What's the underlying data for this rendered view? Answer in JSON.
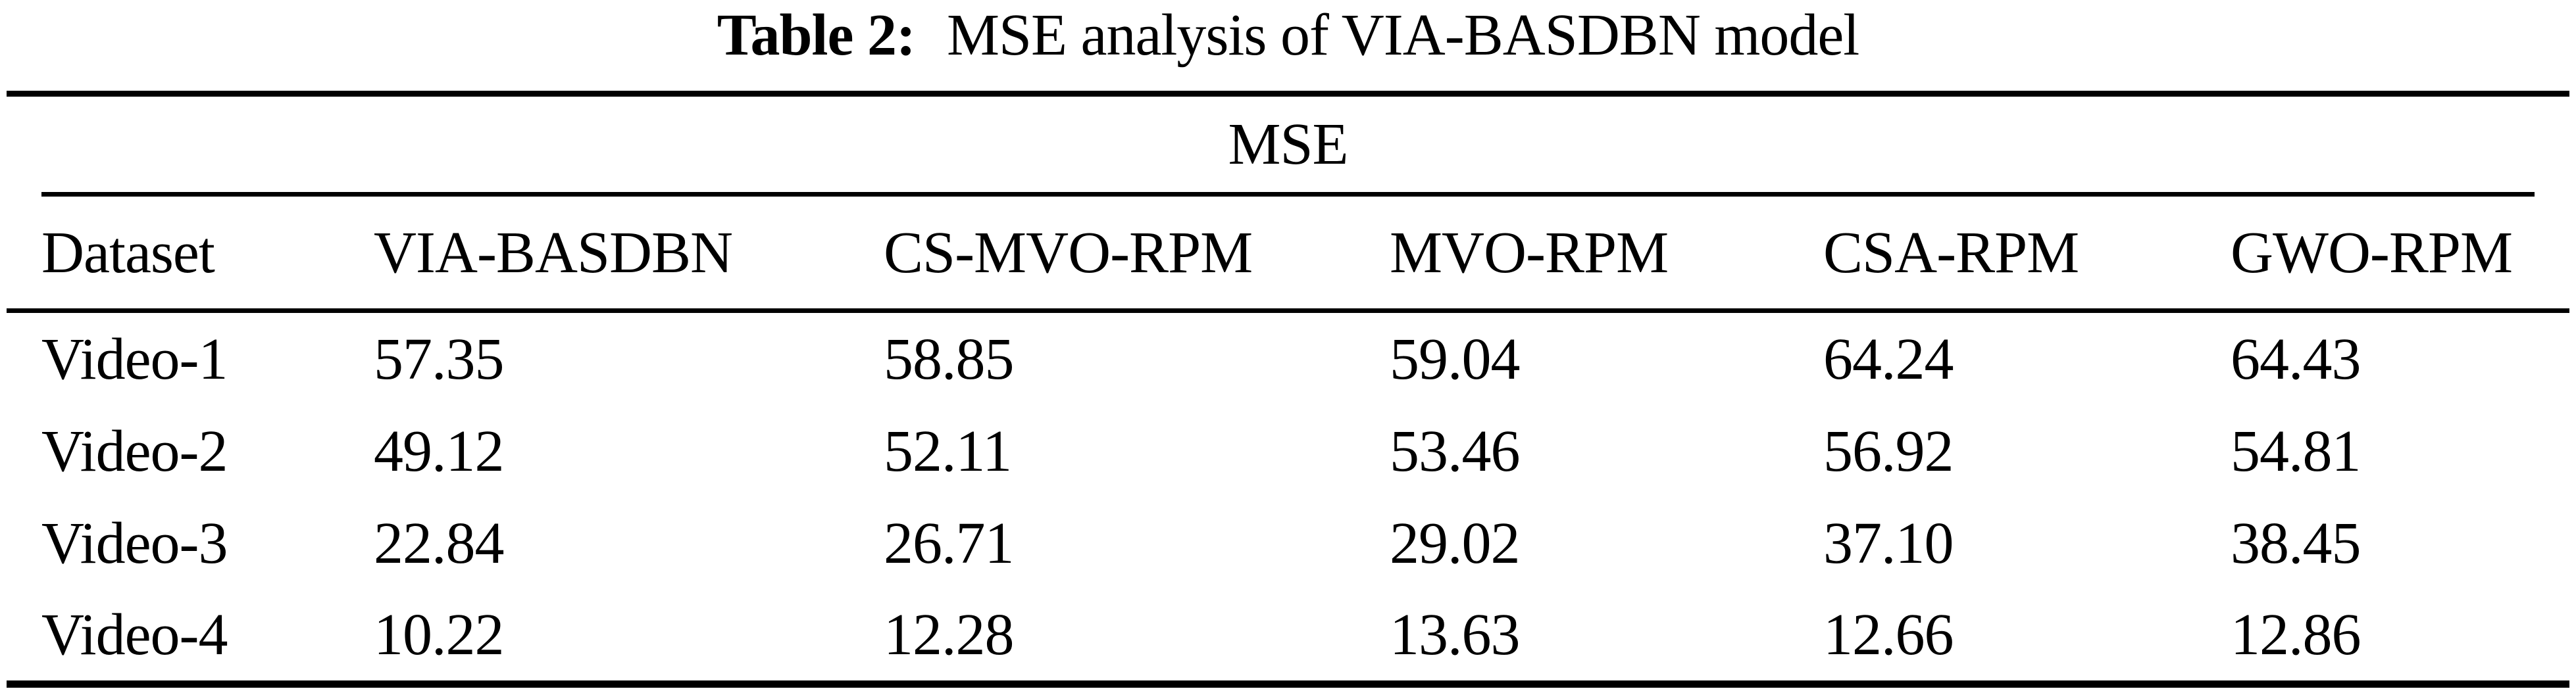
{
  "title": {
    "label": "Table 2:",
    "text": "MSE analysis of VIA-BASDBN model"
  },
  "table": {
    "group_header": "MSE",
    "columns": [
      "Dataset",
      "VIA-BASDBN",
      "CS-MVO-RPM",
      "MVO-RPM",
      "CSA-RPM",
      "GWO-RPM"
    ],
    "rows": [
      {
        "dataset": "Video-1",
        "values": [
          "57.35",
          "58.85",
          "59.04",
          "64.24",
          "64.43"
        ]
      },
      {
        "dataset": "Video-2",
        "values": [
          "49.12",
          "52.11",
          "53.46",
          "56.92",
          "54.81"
        ]
      },
      {
        "dataset": "Video-3",
        "values": [
          "22.84",
          "26.71",
          "29.02",
          "37.10",
          "38.45"
        ]
      },
      {
        "dataset": "Video-4",
        "values": [
          "10.22",
          "12.28",
          "13.63",
          "12.66",
          "12.86"
        ]
      }
    ]
  },
  "colors": {
    "background": "#ffffff",
    "text": "#000000",
    "rule": "#000000"
  }
}
